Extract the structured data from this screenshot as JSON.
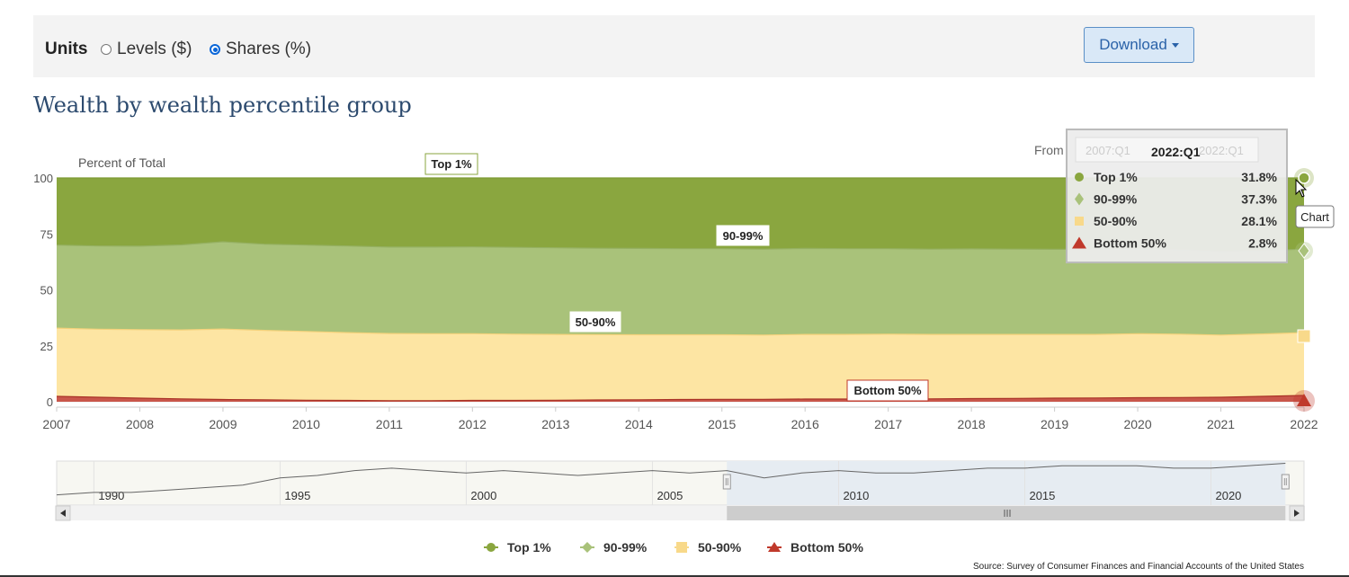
{
  "units": {
    "label": "Units",
    "options": [
      {
        "label": "Levels ($)",
        "selected": false
      },
      {
        "label": "Shares (%)",
        "selected": true
      }
    ]
  },
  "download": {
    "label": "Download"
  },
  "title": "Wealth by wealth percentile group",
  "range": {
    "from_label": "From",
    "from_value": "2007:Q1",
    "to_value": "2022:Q1"
  },
  "tooltip": {
    "period": "2022:Q1",
    "rows": [
      {
        "name": "Top 1%",
        "value": "31.8%"
      },
      {
        "name": "90-99%",
        "value": "37.3%"
      },
      {
        "name": "50-90%",
        "value": "28.1%"
      },
      {
        "name": "Bottom 50%",
        "value": "2.8%"
      }
    ]
  },
  "chart_tooltip": "Chart",
  "source": "Source: Survey of Consumer Finances and Financial Accounts of the United States",
  "colors": {
    "top1": "#8aa63f",
    "p90_99": "#a9c27a",
    "p50_90": "#fde5a3",
    "bottom50": "#c0392b"
  },
  "chart_data": {
    "type": "area",
    "stacked": true,
    "ylabel": "Percent of Total",
    "ylim": [
      0,
      100
    ],
    "yticks": [
      0,
      25,
      50,
      75,
      100
    ],
    "xticks": [
      "2007",
      "2008",
      "2009",
      "2010",
      "2011",
      "2012",
      "2013",
      "2014",
      "2015",
      "2016",
      "2017",
      "2018",
      "2019",
      "2020",
      "2021",
      "2022"
    ],
    "x": [
      2007.0,
      2007.5,
      2008.0,
      2008.5,
      2009.0,
      2009.5,
      2010.0,
      2010.5,
      2011.0,
      2011.5,
      2012.0,
      2012.5,
      2013.0,
      2013.5,
      2014.0,
      2014.5,
      2015.0,
      2015.5,
      2016.0,
      2016.5,
      2017.0,
      2017.5,
      2018.0,
      2018.5,
      2019.0,
      2019.5,
      2020.0,
      2020.5,
      2021.0,
      2021.5,
      2022.0
    ],
    "series": [
      {
        "name": "Bottom 50%",
        "values": [
          2.4,
          2.0,
          1.6,
          1.3,
          1.0,
          0.9,
          0.7,
          0.6,
          0.5,
          0.5,
          0.6,
          0.6,
          0.7,
          0.8,
          0.9,
          1.0,
          1.1,
          1.1,
          1.2,
          1.2,
          1.3,
          1.3,
          1.4,
          1.5,
          1.6,
          1.7,
          1.8,
          1.9,
          2.0,
          2.4,
          2.8
        ]
      },
      {
        "name": "50-90%",
        "values": [
          30.5,
          30.4,
          30.6,
          30.8,
          31.5,
          31.0,
          30.7,
          30.3,
          30.0,
          29.9,
          29.8,
          29.6,
          29.4,
          29.2,
          29.0,
          28.9,
          28.8,
          28.7,
          28.9,
          28.9,
          28.9,
          28.8,
          28.7,
          28.6,
          28.5,
          28.4,
          28.6,
          28.3,
          27.8,
          27.9,
          28.1
        ]
      },
      {
        "name": "90-99%",
        "values": [
          37.1,
          37.2,
          37.3,
          38.0,
          39.0,
          38.5,
          38.6,
          38.7,
          38.6,
          38.7,
          38.8,
          38.8,
          38.7,
          38.6,
          38.6,
          38.5,
          38.5,
          38.4,
          38.4,
          38.3,
          38.2,
          38.1,
          38.2,
          38.1,
          38.0,
          38.0,
          38.0,
          37.8,
          37.4,
          37.3,
          37.3
        ]
      },
      {
        "name": "Top 1%",
        "values": [
          30.0,
          30.4,
          30.5,
          29.9,
          28.5,
          29.6,
          30.0,
          30.4,
          30.9,
          30.9,
          30.8,
          31.0,
          31.2,
          31.4,
          31.5,
          31.6,
          31.6,
          31.8,
          31.5,
          31.6,
          31.6,
          31.8,
          31.7,
          31.8,
          31.9,
          31.9,
          31.6,
          32.0,
          32.8,
          32.4,
          31.8
        ]
      }
    ],
    "annotations": [
      {
        "series": "Top 1%",
        "label": "Top 1%",
        "x": 2011.8,
        "y": 100
      },
      {
        "series": "90-99%",
        "label": "90-99%",
        "x": 2015.25,
        "y": 69
      },
      {
        "series": "50-90%",
        "label": "50-90%",
        "x": 2013.5,
        "y": 32
      },
      {
        "series": "Bottom 50%",
        "label": "Bottom 50%",
        "x": 2017.0,
        "y": 1.5
      }
    ],
    "navigator": {
      "xticks": [
        "1990",
        "1995",
        "2000",
        "2005",
        "2010",
        "2015",
        "2020"
      ],
      "range": [
        1989,
        2022.5
      ],
      "selected": [
        2007,
        2022
      ],
      "values": [
        [
          1989,
          2
        ],
        [
          1990,
          3
        ],
        [
          1991,
          3
        ],
        [
          1992,
          4
        ],
        [
          1993,
          5
        ],
        [
          1994,
          6
        ],
        [
          1995,
          9
        ],
        [
          1996,
          10
        ],
        [
          1997,
          12
        ],
        [
          1998,
          13
        ],
        [
          1999,
          12
        ],
        [
          2000,
          11
        ],
        [
          2001,
          12
        ],
        [
          2002,
          11
        ],
        [
          2003,
          10
        ],
        [
          2004,
          11
        ],
        [
          2005,
          12
        ],
        [
          2006,
          11
        ],
        [
          2007,
          12
        ],
        [
          2008,
          9
        ],
        [
          2009,
          11
        ],
        [
          2010,
          12
        ],
        [
          2011,
          11
        ],
        [
          2012,
          11
        ],
        [
          2013,
          12
        ],
        [
          2014,
          13
        ],
        [
          2015,
          13
        ],
        [
          2016,
          14
        ],
        [
          2017,
          14
        ],
        [
          2018,
          14
        ],
        [
          2019,
          13
        ],
        [
          2020,
          13
        ],
        [
          2021,
          14
        ],
        [
          2022,
          15
        ]
      ]
    },
    "legend": {
      "position": "bottom"
    }
  }
}
